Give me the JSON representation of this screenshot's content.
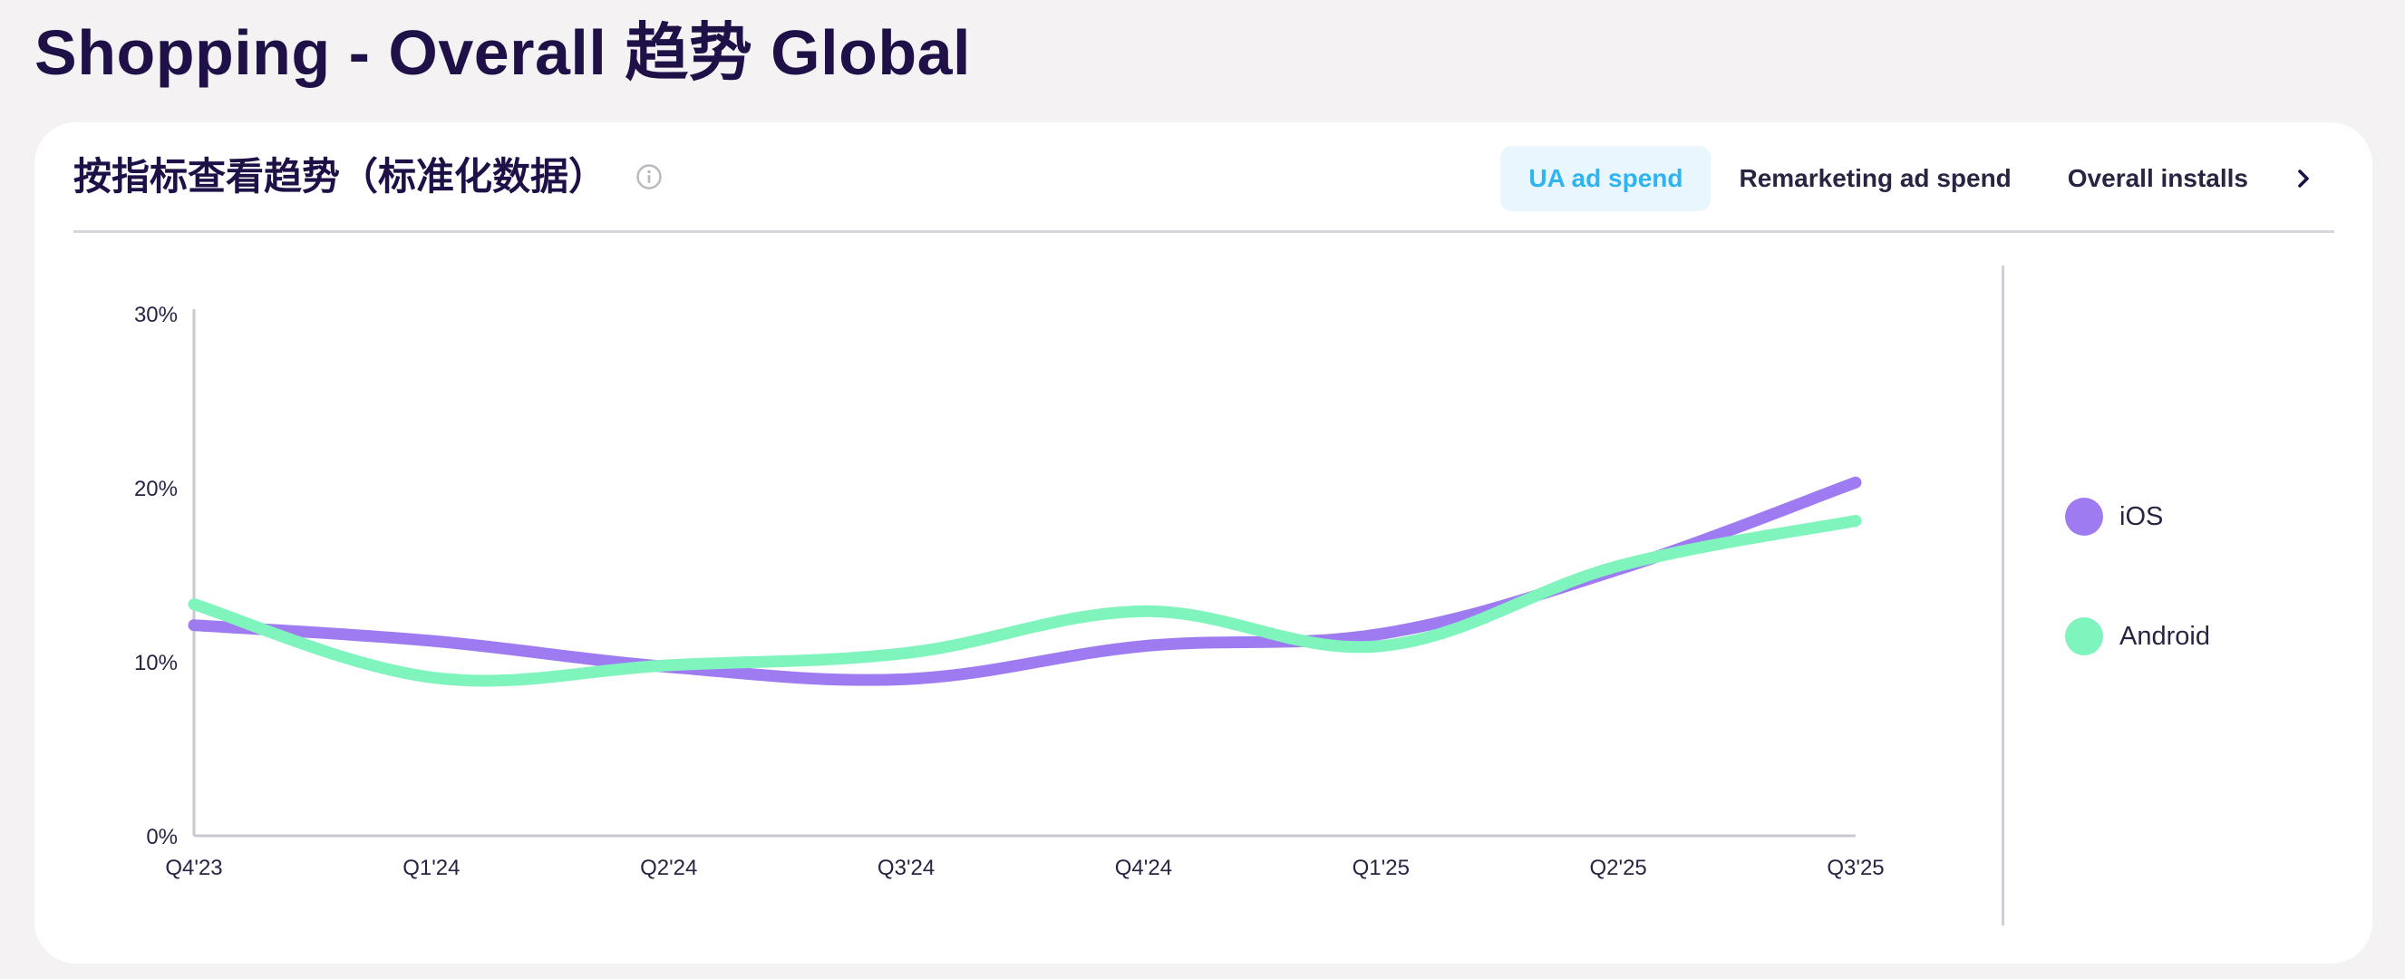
{
  "page": {
    "title": "Shopping - Overall 趋势 Global"
  },
  "card": {
    "title": "按指标查看趋势（标准化数据）",
    "info_icon": "info-circle-icon"
  },
  "tabs": [
    {
      "label": "UA ad spend",
      "active": true
    },
    {
      "label": "Remarketing ad spend",
      "active": false
    },
    {
      "label": "Overall installs",
      "active": false
    }
  ],
  "next_icon": "chevron-right-icon",
  "colors": {
    "ios": "#9f7bf2",
    "android": "#7ff4bd",
    "active_tab_text": "#2eb4f0",
    "active_tab_bg": "#eaf6fe",
    "title_text": "#1f1147"
  },
  "chart_data": {
    "type": "line",
    "smooth": true,
    "x": [
      "Q4'23",
      "Q1'24",
      "Q2'24",
      "Q3'24",
      "Q4'24",
      "Q1'25",
      "Q2'25",
      "Q3'25"
    ],
    "ylim": [
      0,
      30
    ],
    "yticks": [
      0,
      10,
      20,
      30
    ],
    "ytick_labels": [
      "0%",
      "10%",
      "20%",
      "30%"
    ],
    "grid": false,
    "legend_position": "right",
    "series": [
      {
        "name": "iOS",
        "color": "#9f7bf2",
        "values": [
          12.1,
          11.2,
          9.7,
          9.0,
          10.9,
          11.6,
          15.3,
          20.3
        ]
      },
      {
        "name": "Android",
        "color": "#7ff4bd",
        "values": [
          13.3,
          9.1,
          9.8,
          10.5,
          12.9,
          10.9,
          15.5,
          18.1
        ]
      }
    ]
  }
}
